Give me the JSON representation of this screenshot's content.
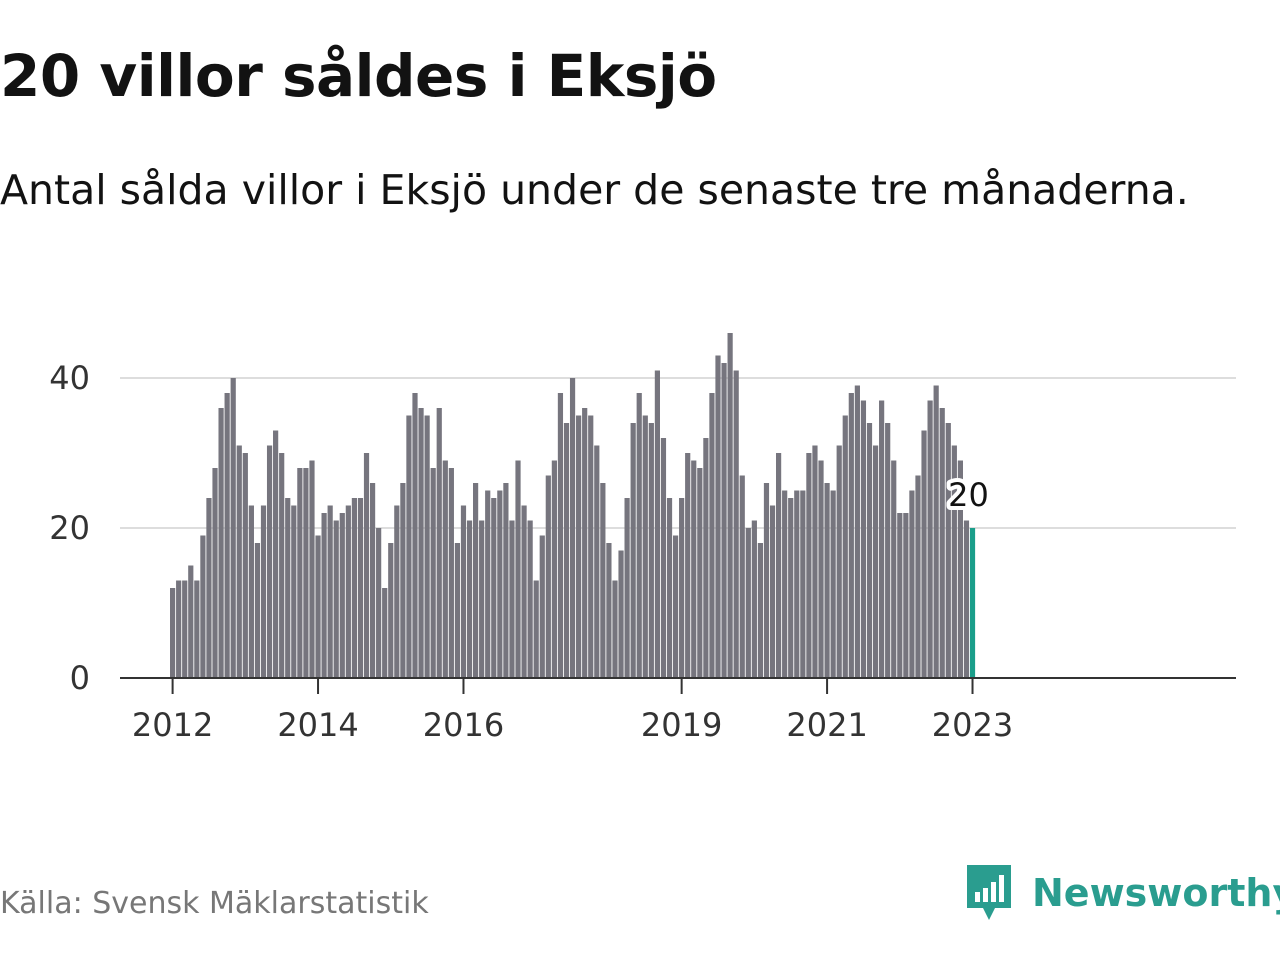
{
  "title": "20 villor såldes i Eksjö",
  "subtitle": "Antal sålda villor i Eksjö under de senaste tre månaderna.",
  "source": "Källa: Svensk Mäklarstatistik",
  "brand": {
    "name": "Newsworthy",
    "icon": "newsworthy-logo-icon",
    "color": "#2a9d8f"
  },
  "colors": {
    "bar": "#76757e",
    "highlight": "#1a9e8a",
    "grid": "#dddddd",
    "axis": "#333333"
  },
  "chart_data": {
    "type": "bar",
    "title": "20 villor såldes i Eksjö",
    "xlabel": "",
    "ylabel": "",
    "ylim": [
      0,
      46
    ],
    "yticks": [
      0,
      20,
      40
    ],
    "grid": true,
    "x_start": "2012-01",
    "x_ticks": [
      {
        "label": "2012",
        "index": 0
      },
      {
        "label": "2014",
        "index": 24
      },
      {
        "label": "2016",
        "index": 48
      },
      {
        "label": "2019",
        "index": 84
      },
      {
        "label": "2021",
        "index": 108
      },
      {
        "label": "2023",
        "index": 132
      }
    ],
    "values": [
      12,
      13,
      13,
      15,
      13,
      19,
      24,
      28,
      36,
      38,
      40,
      31,
      30,
      23,
      18,
      23,
      31,
      33,
      30,
      24,
      23,
      28,
      28,
      29,
      19,
      22,
      23,
      21,
      22,
      23,
      24,
      24,
      30,
      26,
      20,
      12,
      18,
      23,
      26,
      35,
      38,
      36,
      35,
      28,
      36,
      29,
      28,
      18,
      23,
      21,
      26,
      21,
      25,
      24,
      25,
      26,
      21,
      29,
      23,
      21,
      13,
      19,
      27,
      29,
      38,
      34,
      40,
      35,
      36,
      35,
      31,
      26,
      18,
      13,
      17,
      24,
      34,
      38,
      35,
      34,
      41,
      32,
      24,
      19,
      24,
      30,
      29,
      28,
      32,
      38,
      43,
      42,
      46,
      41,
      27,
      20,
      21,
      18,
      26,
      23,
      30,
      25,
      24,
      25,
      25,
      30,
      31,
      29,
      26,
      25,
      31,
      35,
      38,
      39,
      37,
      34,
      31,
      37,
      34,
      29,
      22,
      22,
      25,
      27,
      33,
      37,
      39,
      36,
      34,
      31,
      29,
      21,
      20
    ],
    "highlight_label": "20"
  }
}
